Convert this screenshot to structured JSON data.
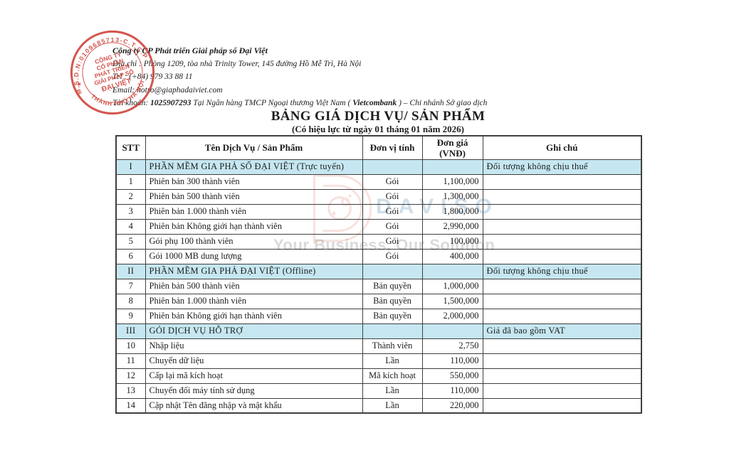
{
  "company": {
    "name": "Công ty CP Phát triển Giải pháp số Đại Việt",
    "address": "Địa chỉ : Phòng 1209, tòa nhà Trinity Tower, 145 đường Hồ Mễ Trì, Hà Nội",
    "tel": "Tel : (+84) 979 33 88 11",
    "email": "Email: hotro@giaphadaiviet.com",
    "account_prefix": "Tài khoản: ",
    "account_number": "1025907293",
    "account_mid": "  Tại Ngân hàng TMCP Ngoại thương Việt Nam ( ",
    "bank_name": "Vietcombank",
    "account_suffix": " ) – Chi nhánh Sở giao dịch"
  },
  "stamp": {
    "top_text": "M.S.D.N:0109685713-C.T.C.P",
    "center_lines": [
      "CÔNG TY",
      "CỔ PHẦN",
      "PHÁT TRIỂN",
      "GIẢI PHÁP SỐ",
      "ĐẠI VIỆT"
    ],
    "bottom_text": "THÀNH PHỐ HÀ NỘI",
    "star": "★",
    "color": "#cd4038"
  },
  "document": {
    "title": "BẢNG GIÁ DỊCH VỤ/ SẢN PHẨM",
    "subtitle": "(Có hiệu lực từ ngày 01 tháng 01 năm 2026)"
  },
  "watermark": {
    "brand": "DAVISO",
    "slogan": "Your Business, Our Solution",
    "logo_color": "#eec0b8",
    "brand_color": "#8cb0ce",
    "highlight_color": "#c6e7f1"
  },
  "table": {
    "header_cells": [
      [
        "STT"
      ],
      [
        "Tên Dịch Vụ / Sản Phẩm"
      ],
      [
        "Đơn vị tính"
      ],
      [
        "Đơn giá",
        "(VNĐ)"
      ],
      [
        "Ghi chú"
      ]
    ],
    "rows": [
      {
        "stt": "I",
        "name": "PHẦN MỀM GIA PHẢ SỐ ĐẠI VIỆT (Trực tuyến)",
        "unit": "",
        "price": "",
        "note": "Đối tượng không chịu thuế",
        "section": true
      },
      {
        "stt": "1",
        "name": "Phiên bản 300 thành viên",
        "unit": "Gói",
        "price": "1,100,000",
        "note": "",
        "section": false
      },
      {
        "stt": "2",
        "name": "Phiên bản 500 thành viên",
        "unit": "Gói",
        "price": "1,300,000",
        "note": "",
        "section": false
      },
      {
        "stt": "3",
        "name": "Phiên bản 1.000 thành viên",
        "unit": "Gói",
        "price": "1,800,000",
        "note": "",
        "section": false
      },
      {
        "stt": "4",
        "name": "Phiên bản Không giới hạn thành viên",
        "unit": "Gói",
        "price": "2,990,000",
        "note": "",
        "section": false
      },
      {
        "stt": "5",
        "name": "Gói phụ 100 thành viên",
        "unit": "Gói",
        "price": "100,000",
        "note": "",
        "section": false
      },
      {
        "stt": "6",
        "name": "Gói 1000 MB dung lượng",
        "unit": "Gói",
        "price": "400,000",
        "note": "",
        "section": false
      },
      {
        "stt": "II",
        "name": "PHẦN MỀM GIA PHẢ ĐẠI VIỆT (Offline)",
        "unit": "",
        "price": "",
        "note": "Đối tượng không chịu thuế",
        "section": true
      },
      {
        "stt": "7",
        "name": "Phiên bản 500 thành viên",
        "unit": "Bản quyền",
        "price": "1,000,000",
        "note": "",
        "section": false
      },
      {
        "stt": "8",
        "name": "Phiên bản 1.000 thành viên",
        "unit": "Bản quyền",
        "price": "1,500,000",
        "note": "",
        "section": false
      },
      {
        "stt": "9",
        "name": "Phiên bản Không giới hạn thành viên",
        "unit": "Bản quyền",
        "price": "2,000,000",
        "note": "",
        "section": false
      },
      {
        "stt": "III",
        "name": "GÓI DỊCH VỤ HỖ TRỢ",
        "unit": "",
        "price": "",
        "note": "Giá đã bao gồm VAT",
        "section": true
      },
      {
        "stt": "10",
        "name": "Nhập liệu",
        "unit": "Thành viên",
        "price": "2,750",
        "note": "",
        "section": false
      },
      {
        "stt": "11",
        "name": "Chuyển dữ liệu",
        "unit": "Lần",
        "price": "110,000",
        "note": "",
        "section": false
      },
      {
        "stt": "12",
        "name": "Cấp lại mã kích hoạt",
        "unit": "Mã kích hoạt",
        "price": "550,000",
        "note": "",
        "section": false
      },
      {
        "stt": "13",
        "name": "Chuyển đổi máy tính sử dụng",
        "unit": "Lần",
        "price": "110,000",
        "note": "",
        "section": false
      },
      {
        "stt": "14",
        "name": "Cập nhật Tên đăng nhập và mật khẩu",
        "unit": "Lần",
        "price": "220,000",
        "note": "",
        "section": false
      }
    ]
  }
}
